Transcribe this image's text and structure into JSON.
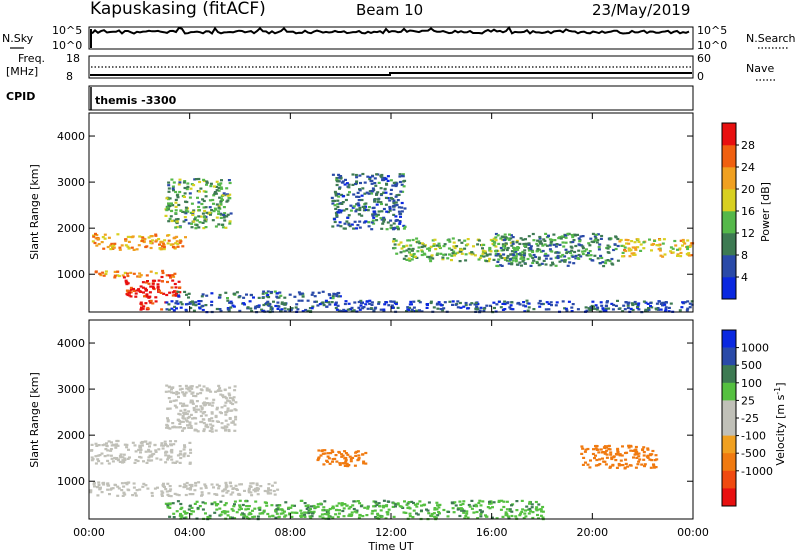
{
  "header": {
    "station": "Kapuskasing (fitACF)",
    "beam": "Beam 10",
    "date": "23/May/2019"
  },
  "panels": {
    "nsky": {
      "label": "N.Sky",
      "ticks": [
        "10^5",
        "10^0"
      ],
      "right_label": "N.Search",
      "right_ticks": [
        "10^5",
        "10^0"
      ]
    },
    "freq": {
      "label_line1": "Freq.",
      "label_line2": "[MHz]",
      "ticks": [
        "18",
        "8"
      ],
      "right_label": "Nave",
      "right_ticks": [
        "60",
        "0"
      ]
    },
    "cpid": {
      "label": "CPID",
      "value": "themis -3300"
    }
  },
  "colors": {
    "power": [
      "#0a28e0",
      "#2a4aa8",
      "#3d7a52",
      "#55b84a",
      "#d8d020",
      "#f0a020",
      "#f06010",
      "#e81010"
    ],
    "velocity": [
      "#e81010",
      "#f04a10",
      "#f07a10",
      "#f0a020",
      "#c0c0b8",
      "#c0c0b8",
      "#55c040",
      "#3d7a52",
      "#2a4aa8",
      "#0a28e0"
    ]
  },
  "chart_data": [
    {
      "type": "heatmap",
      "title": "",
      "xlabel": "Time UT",
      "ylabel": "Slant Range [km]",
      "xlim": [
        "00:00",
        "24:00"
      ],
      "ylim": [
        180,
        4500
      ],
      "x_ticks": [
        "00:00",
        "04:00",
        "08:00",
        "12:00",
        "16:00",
        "20:00",
        "00:00"
      ],
      "y_ticks": [
        1000,
        2000,
        3000,
        4000
      ],
      "colorbar": {
        "label": "Power [dB]",
        "ticks": [
          4,
          8,
          12,
          16,
          20,
          24,
          28
        ],
        "range": [
          0,
          32
        ]
      },
      "regions": [
        {
          "t_start": 0.0,
          "t_end": 3.8,
          "range_start": 1550,
          "range_end": 1900,
          "value": 22
        },
        {
          "t_start": 0.2,
          "t_end": 3.4,
          "range_start": 950,
          "range_end": 1100,
          "value": 24
        },
        {
          "t_start": 1.4,
          "t_end": 3.6,
          "range_start": 500,
          "range_end": 900,
          "value": 30
        },
        {
          "t_start": 2.0,
          "t_end": 3.0,
          "range_start": 250,
          "range_end": 450,
          "value": 30
        },
        {
          "t_start": 3.0,
          "t_end": 5.6,
          "range_start": 2000,
          "range_end": 3100,
          "value": 12
        },
        {
          "t_start": 3.3,
          "t_end": 10.0,
          "range_start": 500,
          "range_end": 650,
          "value": 8
        },
        {
          "t_start": 9.6,
          "t_end": 12.5,
          "range_start": 2000,
          "range_end": 3200,
          "value": 8
        },
        {
          "t_start": 12.0,
          "t_end": 17.5,
          "range_start": 1300,
          "range_end": 1800,
          "value": 14
        },
        {
          "t_start": 16.0,
          "t_end": 21.0,
          "range_start": 1200,
          "range_end": 1900,
          "value": 10
        },
        {
          "t_start": 21.0,
          "t_end": 24.0,
          "range_start": 1400,
          "range_end": 1800,
          "value": 20
        },
        {
          "t_start": 3.0,
          "t_end": 24.0,
          "range_start": 200,
          "range_end": 450,
          "value": 6
        }
      ]
    },
    {
      "type": "heatmap",
      "title": "",
      "xlabel": "Time UT",
      "ylabel": "Slant Range [km]",
      "xlim": [
        "00:00",
        "24:00"
      ],
      "ylim": [
        180,
        4500
      ],
      "x_ticks": [
        "00:00",
        "04:00",
        "08:00",
        "12:00",
        "16:00",
        "20:00",
        "00:00"
      ],
      "y_ticks": [
        1000,
        2000,
        3000,
        4000
      ],
      "colorbar": {
        "label": "Velocity [m s^-1]",
        "ticks": [
          1000,
          500,
          100,
          25,
          -25,
          -100,
          -500,
          -1000
        ]
      },
      "regions": [
        {
          "t_start": 0.0,
          "t_end": 4.0,
          "range_start": 1400,
          "range_end": 1900,
          "value": 0
        },
        {
          "t_start": 0.0,
          "t_end": 7.5,
          "range_start": 700,
          "range_end": 1000,
          "value": 0
        },
        {
          "t_start": 3.0,
          "t_end": 5.8,
          "range_start": 2100,
          "range_end": 3100,
          "value": 0
        },
        {
          "t_start": 9.0,
          "t_end": 11.0,
          "range_start": 1350,
          "range_end": 1700,
          "value": -300
        },
        {
          "t_start": 19.5,
          "t_end": 22.5,
          "range_start": 1300,
          "range_end": 1800,
          "value": -300
        },
        {
          "t_start": 3.0,
          "t_end": 18.0,
          "range_start": 200,
          "range_end": 600,
          "value": 80
        }
      ]
    }
  ]
}
